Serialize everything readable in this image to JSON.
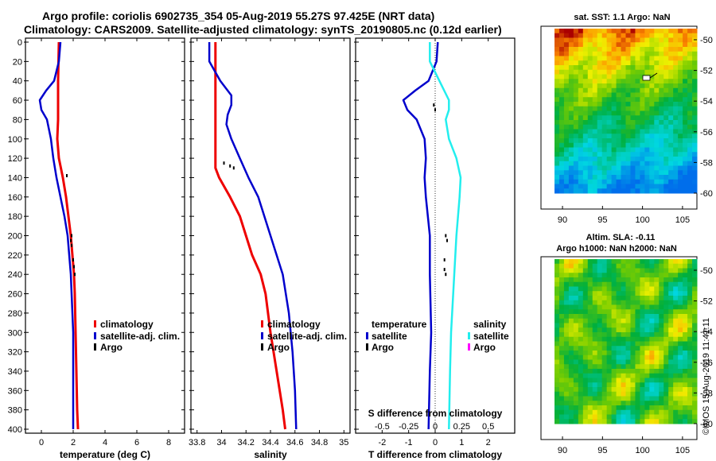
{
  "title_line1": "Argo profile: coriolis 6902735_354 05-Aug-2019 55.27S 97.425E (NRT data)",
  "title_line2": "Climatology: CARS2009. Satellite-adjusted climatology: synTS_20190805.nc (0.12d earlier)",
  "colors": {
    "climatology": "#ee0000",
    "satellite": "#0000cc",
    "argo": "#000000",
    "sal_satellite": "#22eeee",
    "sal_argo": "#ff00ff"
  },
  "chart_data": [
    {
      "type": "line",
      "name": "temperature",
      "xlabel": "temperature (deg C)",
      "ylabel": "",
      "xlim": [
        -1,
        9
      ],
      "ylim": [
        400,
        0
      ],
      "xticks": [
        0,
        2,
        4,
        6,
        8
      ],
      "yticks": [
        0,
        20,
        40,
        60,
        80,
        100,
        120,
        140,
        160,
        180,
        200,
        220,
        240,
        260,
        280,
        300,
        320,
        340,
        360,
        380,
        400
      ],
      "legend": [
        "climatology",
        "satellite-adj. clim.",
        "Argo"
      ],
      "series": [
        {
          "name": "climatology",
          "depth": [
            0,
            40,
            80,
            100,
            120,
            140,
            160,
            180,
            200,
            220,
            240,
            260,
            300,
            340,
            380,
            400
          ],
          "values": [
            1.1,
            1.05,
            1.05,
            1.0,
            1.1,
            1.35,
            1.55,
            1.7,
            1.85,
            1.95,
            2.05,
            2.1,
            2.15,
            2.2,
            2.25,
            2.3
          ]
        },
        {
          "name": "satellite-adj. clim.",
          "depth": [
            0,
            20,
            40,
            50,
            60,
            70,
            80,
            100,
            120,
            140,
            160,
            180,
            200,
            220,
            240,
            260,
            300,
            340,
            380,
            400
          ],
          "values": [
            1.2,
            1.1,
            0.8,
            0.3,
            -0.1,
            0.0,
            0.35,
            0.6,
            0.75,
            0.95,
            1.2,
            1.45,
            1.65,
            1.75,
            1.85,
            1.9,
            2.0,
            2.0,
            2.0,
            2.0
          ]
        },
        {
          "name": "Argo",
          "depth": [
            138,
            200,
            205,
            210,
            225,
            232,
            240
          ],
          "values": [
            1.6,
            1.9,
            1.85,
            1.9,
            2.0,
            2.05,
            2.1
          ]
        }
      ]
    },
    {
      "type": "line",
      "name": "salinity",
      "xlabel": "salinity",
      "xlim": [
        33.75,
        35.05
      ],
      "ylim": [
        400,
        0
      ],
      "xticks": [
        33.8,
        34,
        34.2,
        34.4,
        34.6,
        34.8,
        35
      ],
      "legend": [
        "climatology",
        "satellite-adj. clim.",
        "Argo"
      ],
      "series": [
        {
          "name": "climatology",
          "depth": [
            0,
            60,
            100,
            130,
            140,
            160,
            180,
            200,
            220,
            240,
            260,
            300,
            340,
            380,
            400
          ],
          "values": [
            33.95,
            33.95,
            33.95,
            33.95,
            33.98,
            34.07,
            34.15,
            34.2,
            34.25,
            34.32,
            34.36,
            34.4,
            34.45,
            34.5,
            34.52
          ]
        },
        {
          "name": "satellite-adj. clim.",
          "depth": [
            0,
            20,
            40,
            55,
            65,
            75,
            85,
            100,
            120,
            140,
            160,
            200,
            240,
            280,
            320,
            360,
            400
          ],
          "values": [
            33.9,
            33.9,
            33.99,
            34.08,
            34.08,
            34.05,
            34.04,
            34.08,
            34.15,
            34.22,
            34.3,
            34.4,
            34.5,
            34.55,
            34.58,
            34.6,
            34.61
          ]
        },
        {
          "name": "Argo",
          "depth": [
            125,
            128,
            130
          ],
          "values": [
            34.02,
            34.07,
            34.1
          ]
        }
      ]
    },
    {
      "type": "line",
      "name": "difference",
      "xlabel": "T difference from climatology",
      "top_label": "S difference from climatology",
      "xlim": [
        -3,
        3
      ],
      "ylim": [
        400,
        0
      ],
      "xticks": [
        -2,
        -1,
        0,
        1,
        2
      ],
      "xtick_labels": [
        "-2",
        "-1",
        "0",
        "1",
        "2"
      ],
      "top_ticks": [
        -0.5,
        -0.25,
        0,
        0.25,
        0.5
      ],
      "top_tick_labels": [
        "-0.5",
        "-0.25",
        "0",
        "0.25",
        "0.5"
      ],
      "legend_temperature": "temperature",
      "legend_salinity": "salinity",
      "legend_satellite": "satellite",
      "legend_argo": "Argo",
      "series": [
        {
          "name": "T satellite",
          "depth": [
            0,
            20,
            40,
            50,
            60,
            70,
            80,
            100,
            120,
            140,
            160,
            200,
            240,
            300,
            340,
            400
          ],
          "values": [
            0.1,
            0.05,
            -0.25,
            -0.75,
            -1.2,
            -1.05,
            -0.7,
            -0.4,
            -0.35,
            -0.4,
            -0.35,
            -0.2,
            -0.2,
            -0.15,
            -0.2,
            -0.25
          ]
        },
        {
          "name": "S satellite",
          "depth": [
            0,
            20,
            40,
            60,
            70,
            80,
            100,
            120,
            140,
            160,
            200,
            240,
            300,
            340,
            400
          ],
          "values": [
            -0.05,
            -0.05,
            0.04,
            0.13,
            0.13,
            0.1,
            0.13,
            0.2,
            0.24,
            0.23,
            0.2,
            0.18,
            0.15,
            0.14,
            0.13
          ]
        },
        {
          "name": "T Argo",
          "depth": [
            65,
            70,
            200,
            205,
            225,
            235,
            240
          ],
          "values": [
            -0.05,
            0.0,
            0.4,
            0.45,
            0.35,
            0.35,
            0.4
          ]
        }
      ]
    }
  ],
  "map_sst": {
    "title": "sat. SST: 1.1  Argo: NaN",
    "xticks": [
      "90",
      "95",
      "100",
      "105"
    ],
    "yticks": [
      "-50",
      "-52",
      "-54",
      "-56",
      "-58",
      "-60"
    ]
  },
  "map_sla": {
    "title_line1": "Altim. SLA: -0.11",
    "title_line2": "Argo h1000: NaN  h2000: NaN",
    "xticks": [
      "90",
      "95",
      "100",
      "105"
    ],
    "yticks": [
      "-50",
      "-52",
      "-54",
      "-56",
      "-58",
      "-60"
    ]
  },
  "watermark": "©IMOS 15-Aug-2019 11:41:11"
}
